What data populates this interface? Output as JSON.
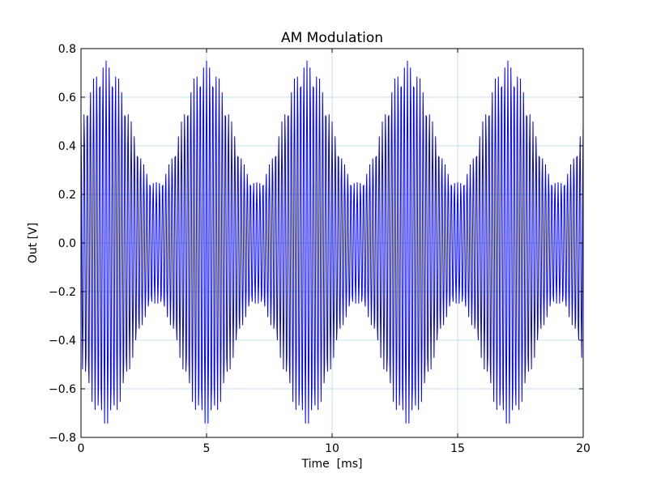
{
  "chart_data": {
    "type": "line",
    "title": "AM Modulation",
    "xlabel": "Time  [ms]",
    "ylabel": "Out [V]",
    "xlim": [
      0,
      20
    ],
    "ylim": [
      -0.8,
      0.8
    ],
    "grid": true,
    "x_ticks": [
      0,
      5,
      10,
      15,
      20
    ],
    "x_tick_labels": [
      "0",
      "5",
      "10",
      "15",
      "20"
    ],
    "y_ticks": [
      -0.8,
      -0.6,
      -0.4,
      -0.2,
      0.0,
      0.2,
      0.4,
      0.6,
      0.8
    ],
    "y_tick_labels": [
      "−0.8",
      "−0.6",
      "−0.4",
      "−0.2",
      "0.0",
      "0.2",
      "0.4",
      "0.6",
      "0.8"
    ],
    "series": [
      {
        "color": "#0000ff",
        "signal": {
          "carrier_amplitude": 0.5,
          "modulation_amplitude": 0.25,
          "modulation_frequency_khz": 0.25,
          "carrier_frequency_khz": 8.0,
          "sample_step_ms": 0.02
        }
      }
    ]
  }
}
